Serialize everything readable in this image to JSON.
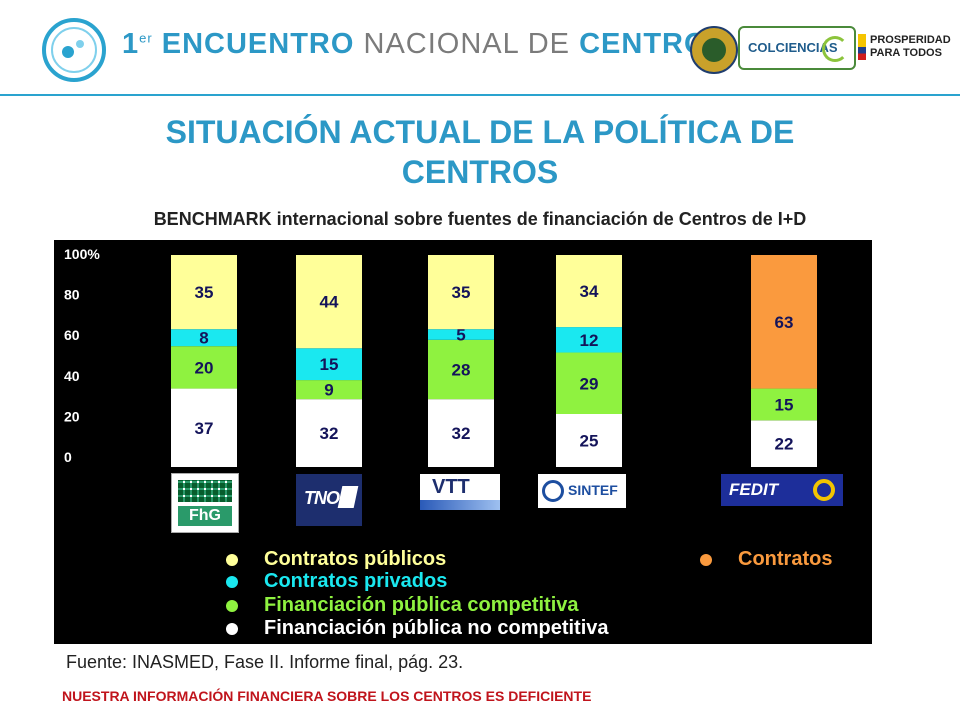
{
  "header": {
    "event_number": "1",
    "event_superscript": "er",
    "event_word1": "ENCUENTRO",
    "event_word2": "NACIONAL DE",
    "event_word3": "CENTROS",
    "partner1": "COLCIENCIAS",
    "partner2_line1": "PROSPERIDAD",
    "partner2_line2": "PARA TODOS"
  },
  "slide": {
    "title_line1": "SITUACIÓN ACTUAL DE LA POLÍTICA DE",
    "title_line2": "CENTROS",
    "source": "Fuente:  INASMED, Fase II. Informe final, pág. 23.",
    "warning": "NUESTRA INFORMACIÓN FINANCIERA SOBRE LOS CENTROS ES DEFICIENTE"
  },
  "organizations": [
    {
      "name": "FhG"
    },
    {
      "name": "TNO"
    },
    {
      "name": "VTT"
    },
    {
      "name": "SINTEF"
    },
    {
      "name": "FEDIT"
    }
  ],
  "chart_data": {
    "type": "bar",
    "stacked": true,
    "title": "BENCHMARK internacional sobre fuentes de financiación de Centros de I+D",
    "categories": [
      "FhG",
      "TNO",
      "VTT",
      "SINTEF",
      "FEDIT"
    ],
    "yticks": [
      "100%",
      "80",
      "60",
      "40",
      "20",
      "0"
    ],
    "ylim": [
      0,
      100
    ],
    "series": [
      {
        "name": "Financiación pública no competitiva",
        "color": "#ffffff",
        "values": [
          37,
          32,
          32,
          25,
          22
        ]
      },
      {
        "name": "Financiación pública competitiva",
        "color": "#8ff240",
        "values": [
          20,
          9,
          28,
          29,
          15
        ]
      },
      {
        "name": "Contratos privados",
        "color": "#1ae8f0",
        "values": [
          8,
          15,
          5,
          12,
          null
        ]
      },
      {
        "name": "Contratos públicos",
        "color": "#ffff99",
        "values": [
          35,
          44,
          35,
          34,
          null
        ]
      },
      {
        "name": "Contratos",
        "color": "#fa9a3e",
        "values": [
          null,
          null,
          null,
          null,
          63
        ]
      }
    ],
    "legend": [
      {
        "label": "Contratos públicos",
        "color": "#ffff99"
      },
      {
        "label": "Contratos privados",
        "color": "#1ae8f0"
      },
      {
        "label": "Financiación pública competitiva",
        "color": "#8ff240"
      },
      {
        "label": "Financiación pública no competitiva",
        "color": "#ffffff"
      },
      {
        "label": "Contratos",
        "color": "#fa9a3e"
      }
    ],
    "label_color": "#14145a"
  }
}
